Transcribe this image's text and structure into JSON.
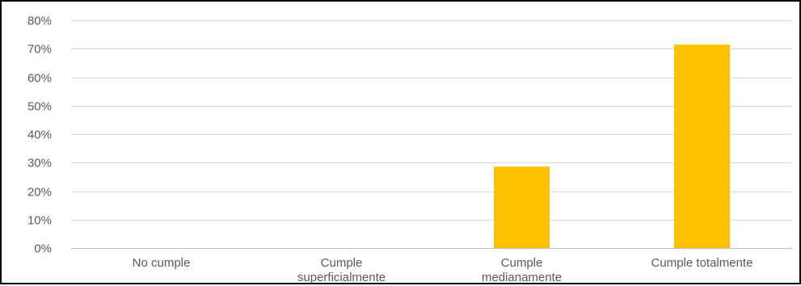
{
  "chart_data": {
    "type": "bar",
    "categories": [
      [
        "No cumple"
      ],
      [
        "Cumple",
        "superficialmente"
      ],
      [
        "Cumple",
        "medianamente"
      ],
      [
        "Cumple totalmente"
      ]
    ],
    "values": [
      0,
      0,
      0.2857,
      0.7143
    ],
    "ylim": [
      0,
      0.8
    ],
    "yticks": [
      0,
      0.1,
      0.2,
      0.3,
      0.4,
      0.5,
      0.6,
      0.7,
      0.8
    ],
    "ytick_labels": [
      "0%",
      "10%",
      "20%",
      "30%",
      "40%",
      "50%",
      "60%",
      "70%",
      "80%"
    ],
    "grid": true,
    "legend": "none",
    "title": "",
    "xlabel": "",
    "ylabel": "",
    "bar_color": "#FFC000",
    "grid_color": "#D9D9D9",
    "axis_color": "#BFBFBF",
    "text_color": "#595959"
  }
}
